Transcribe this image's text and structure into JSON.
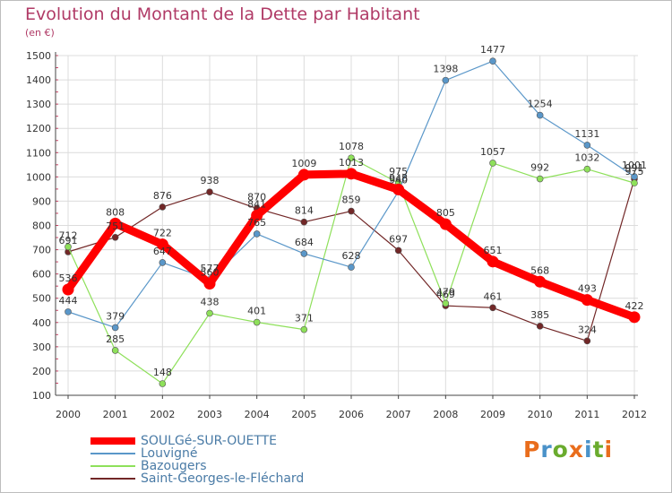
{
  "title": "Evolution du Montant de la Dette par Habitant",
  "unit_label": "(en €)",
  "logo": {
    "text": "Proxiti"
  },
  "colors": {
    "title": "#b03a66",
    "axis_text": "#333333",
    "legend_text": "#4a7ba6",
    "grid": "#dcdcdc",
    "logo_letters": [
      "#e96d1c",
      "#4a92c9",
      "#6aab2e",
      "#e96d1c",
      "#4a92c9",
      "#6aab2e",
      "#e96d1c"
    ]
  },
  "chart_data": {
    "type": "line",
    "title": "Evolution du Montant de la Dette par Habitant",
    "ylabel": "(en €)",
    "xlabel": "",
    "x": [
      "2000",
      "2001",
      "2002",
      "2003",
      "2004",
      "2005",
      "2006",
      "2007",
      "2008",
      "2009",
      "2010",
      "2011",
      "2012"
    ],
    "ylim": [
      100,
      1500
    ],
    "yticks": [
      100,
      200,
      300,
      400,
      500,
      600,
      700,
      800,
      900,
      1000,
      1100,
      1200,
      1300,
      1400,
      1500
    ],
    "grid": true,
    "legend_position": "bottom-left",
    "series": [
      {
        "name": "Saint-Georges-le-Fléchard",
        "color": "#722727",
        "values": [
          691,
          751,
          876,
          938,
          870,
          814,
          859,
          697,
          469,
          461,
          385,
          324,
          991
        ]
      },
      {
        "name": "Bazougers",
        "color": "#8ee05a",
        "values": [
          712,
          285,
          148,
          438,
          401,
          371,
          1078,
          975,
          479,
          1057,
          992,
          1032,
          975
        ]
      },
      {
        "name": "Louvigné",
        "color": "#5a97c9",
        "values": [
          444,
          379,
          647,
          577,
          765,
          684,
          628,
          940,
          1398,
          1477,
          1254,
          1131,
          1001
        ]
      },
      {
        "name": "SOULGé-SUR-OUETTE",
        "color": "#ff0000",
        "values": [
          536,
          808,
          722,
          560,
          841,
          1009,
          1013,
          948,
          805,
          651,
          568,
          493,
          422
        ]
      }
    ],
    "data_labels": {
      "Saint-Georges-le-Fléchard": [
        "691",
        "751",
        "876",
        "938",
        "870",
        "814",
        "859",
        "697",
        "469",
        "461",
        "385",
        "324",
        "991"
      ],
      "Bazougers": [
        "712",
        "285",
        "148",
        "438",
        "401",
        "371",
        "1078",
        "975",
        "479",
        "1057",
        "992",
        "1032",
        "975"
      ],
      "Louvigné": [
        "444",
        "379",
        "647",
        "577",
        "765",
        "684",
        "628",
        "940",
        "1398",
        "1477",
        "1254",
        "1131",
        "1001"
      ],
      "SOULGé-SUR-OUETTE": [
        "536",
        "808",
        "722",
        "560",
        "841",
        "1009",
        "1013",
        "948",
        "805",
        "651",
        "568",
        "493",
        "422"
      ]
    }
  },
  "legend": [
    {
      "label": "SOULGé-SUR-OUETTE",
      "color": "#ff0000"
    },
    {
      "label": "Louvigné",
      "color": "#5a97c9"
    },
    {
      "label": "Bazougers",
      "color": "#8ee05a"
    },
    {
      "label": "Saint-Georges-le-Fléchard",
      "color": "#722727"
    }
  ]
}
